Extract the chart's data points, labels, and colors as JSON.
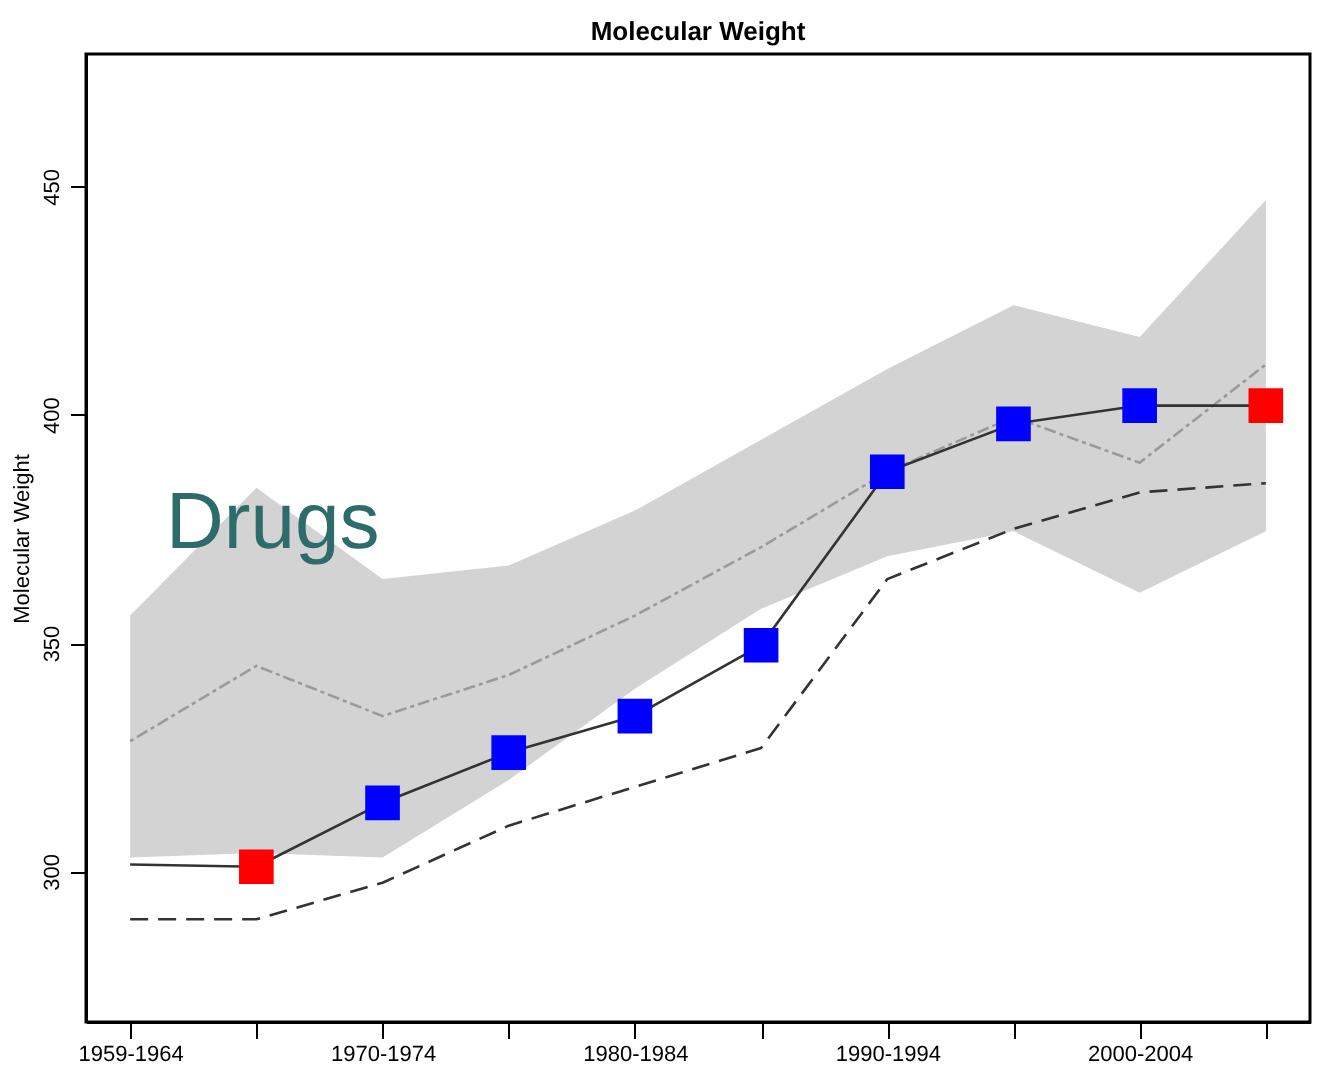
{
  "chart_data": {
    "type": "line",
    "title": "Molecular Weight",
    "ylabel": "Molecular Weight",
    "categories": [
      "1959-1964",
      null,
      "1970-1974",
      null,
      "1980-1984",
      null,
      "1990-1994",
      null,
      "2000-2004",
      null
    ],
    "ylim": [
      267,
      479
    ],
    "yticks": [
      300,
      350,
      400,
      450
    ],
    "grid": false,
    "annotations": [
      "Drugs"
    ],
    "series": [
      {
        "type": "line",
        "color": "#9a9a9a",
        "line_style": "dotted",
        "marker": "none",
        "values": [
          328.5,
          345,
          334,
          343,
          356,
          371,
          387.5,
          399.5,
          389.5,
          411
        ],
        "lower": [
          303,
          304,
          303,
          320,
          340,
          357.5,
          369,
          374.5,
          361,
          374.5
        ],
        "upper": [
          356,
          384,
          364,
          367,
          379,
          394.5,
          410,
          424,
          417,
          447
        ]
      },
      {
        "type": "line",
        "color": "#333333",
        "line_style": "dashed",
        "marker": "none",
        "values": [
          289.5,
          289.5,
          297.5,
          310,
          318.5,
          327,
          364,
          375,
          383,
          385
        ]
      },
      {
        "type": "line",
        "color": "#333333",
        "line_style": "solid",
        "marker": "square",
        "colors": [
          null,
          "#ff0000",
          "#0000ff",
          "#0000ff",
          "#0000ff",
          "#0000ff",
          "#0000ff",
          "#0000ff",
          "#0000ff",
          "#ff0000"
        ],
        "values": [
          301.5,
          301,
          315,
          326,
          334,
          349.5,
          387.5,
          398,
          402,
          402
        ]
      }
    ]
  }
}
